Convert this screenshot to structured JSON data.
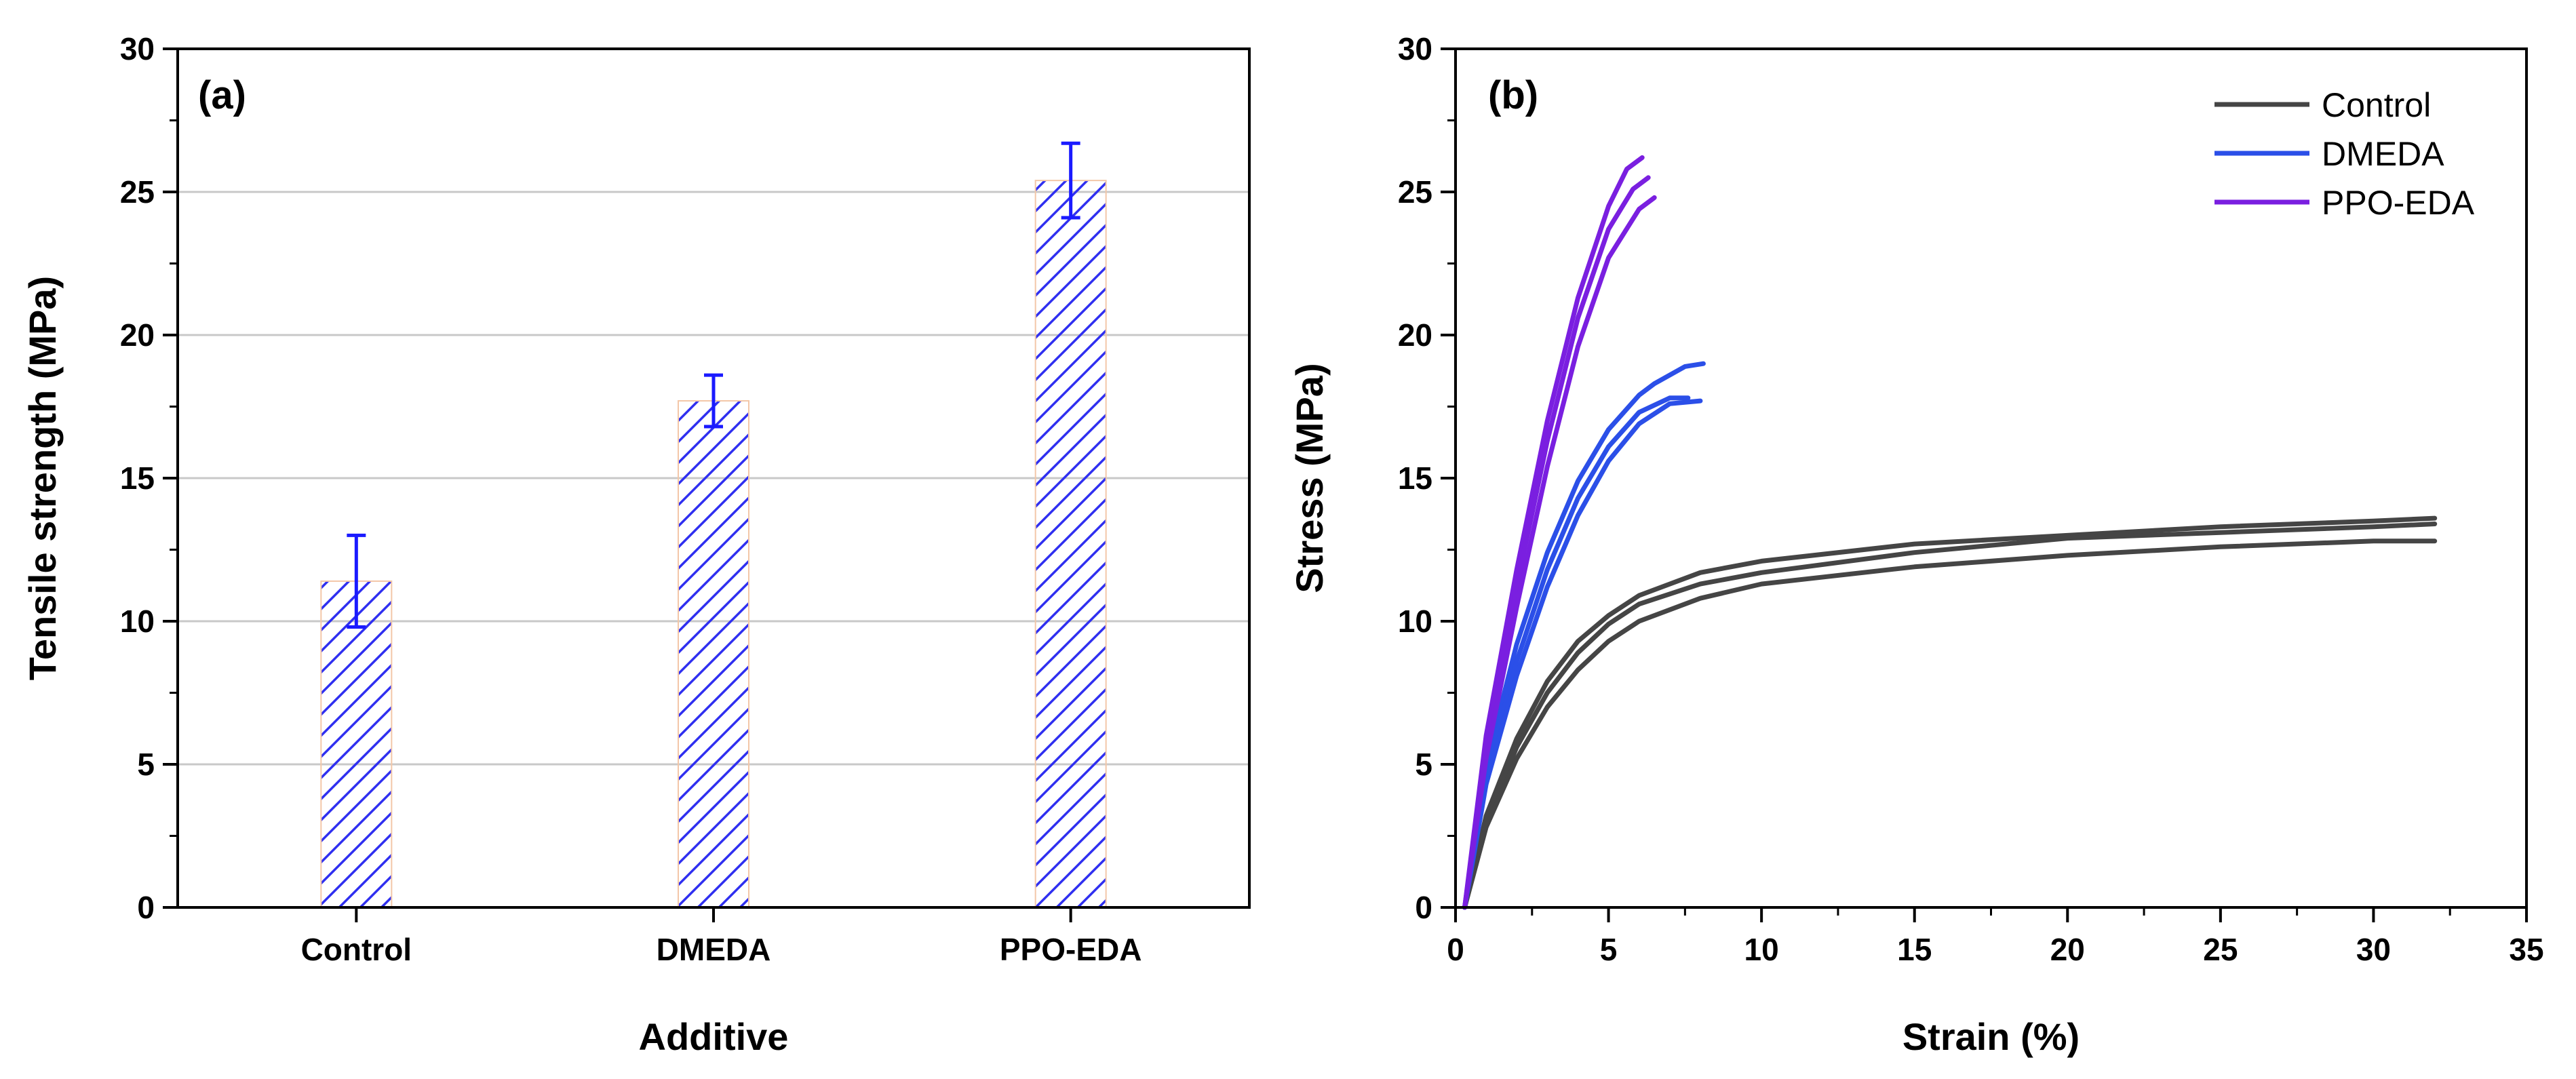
{
  "chart_data": [
    {
      "type": "bar",
      "panel_label": "(a)",
      "categories": [
        "Control",
        "DMEDA",
        "PPO-EDA"
      ],
      "values": [
        11.4,
        17.7,
        25.4
      ],
      "errors": [
        1.6,
        0.9,
        1.3
      ],
      "xlabel": "Additive",
      "ylabel": "Tensile strength (MPa)",
      "ylim": [
        0,
        30
      ],
      "yticks": [
        "0",
        "5",
        "10",
        "15",
        "20",
        "25",
        "30"
      ],
      "grid": true,
      "bar_color": "#2f2ff0",
      "error_color": "#1a1aff"
    },
    {
      "type": "line",
      "panel_label": "(b)",
      "xlabel": "Strain (%)",
      "ylabel": "Stress (MPa)",
      "xlim": [
        0,
        35
      ],
      "ylim": [
        0,
        30
      ],
      "xticks": [
        "0",
        "5",
        "10",
        "15",
        "20",
        "25",
        "30",
        "35"
      ],
      "yticks": [
        "0",
        "5",
        "10",
        "15",
        "20",
        "25",
        "30"
      ],
      "legend_position": "top-right",
      "series": [
        {
          "name": "Control",
          "color": "#454545",
          "curves": [
            {
              "x": [
                0.3,
                1,
                2,
                3,
                4,
                5,
                6,
                8,
                10,
                15,
                20,
                25,
                30,
                32
              ],
              "y": [
                0,
                3.2,
                5.9,
                7.9,
                9.3,
                10.2,
                10.9,
                11.7,
                12.1,
                12.7,
                13.0,
                13.3,
                13.5,
                13.6
              ]
            },
            {
              "x": [
                0.3,
                1,
                2,
                3,
                4,
                5,
                6,
                8,
                10,
                15,
                20,
                25,
                30,
                32
              ],
              "y": [
                0,
                3.0,
                5.6,
                7.5,
                8.9,
                9.9,
                10.6,
                11.3,
                11.7,
                12.4,
                12.9,
                13.1,
                13.3,
                13.4
              ]
            },
            {
              "x": [
                0.3,
                1,
                2,
                3,
                4,
                5,
                6,
                8,
                10,
                15,
                20,
                25,
                30,
                32
              ],
              "y": [
                0,
                2.8,
                5.2,
                7.0,
                8.3,
                9.3,
                10.0,
                10.8,
                11.3,
                11.9,
                12.3,
                12.6,
                12.8,
                12.8
              ]
            }
          ]
        },
        {
          "name": "DMEDA",
          "color": "#2b4fe8",
          "curves": [
            {
              "x": [
                0.3,
                1,
                2,
                3,
                4,
                5,
                6,
                6.5,
                7.5,
                8.1
              ],
              "y": [
                0,
                5,
                9.2,
                12.4,
                14.9,
                16.7,
                17.9,
                18.3,
                18.9,
                19.0
              ]
            },
            {
              "x": [
                0.3,
                1,
                2,
                3,
                4,
                5,
                6,
                7,
                7.6
              ],
              "y": [
                0,
                4.6,
                8.6,
                11.8,
                14.3,
                16.1,
                17.3,
                17.8,
                17.8
              ]
            },
            {
              "x": [
                0.3,
                1,
                2,
                3,
                4,
                5,
                6,
                7,
                8
              ],
              "y": [
                0,
                4.3,
                8.1,
                11.2,
                13.7,
                15.6,
                16.9,
                17.6,
                17.7
              ]
            }
          ]
        },
        {
          "name": "PPO-EDA",
          "color": "#7a1fe0",
          "curves": [
            {
              "x": [
                0.3,
                1,
                2,
                3,
                4,
                5,
                5.6,
                6.1
              ],
              "y": [
                0,
                6,
                11.8,
                17,
                21.3,
                24.5,
                25.8,
                26.2
              ]
            },
            {
              "x": [
                0.3,
                1,
                2,
                3,
                4,
                5,
                5.8,
                6.3
              ],
              "y": [
                0,
                5.6,
                11.2,
                16.3,
                20.6,
                23.7,
                25.1,
                25.5
              ]
            },
            {
              "x": [
                0.3,
                1,
                2,
                3,
                4,
                5,
                6,
                6.5
              ],
              "y": [
                0,
                5.2,
                10.5,
                15.4,
                19.6,
                22.7,
                24.4,
                24.8
              ]
            }
          ]
        }
      ]
    }
  ]
}
